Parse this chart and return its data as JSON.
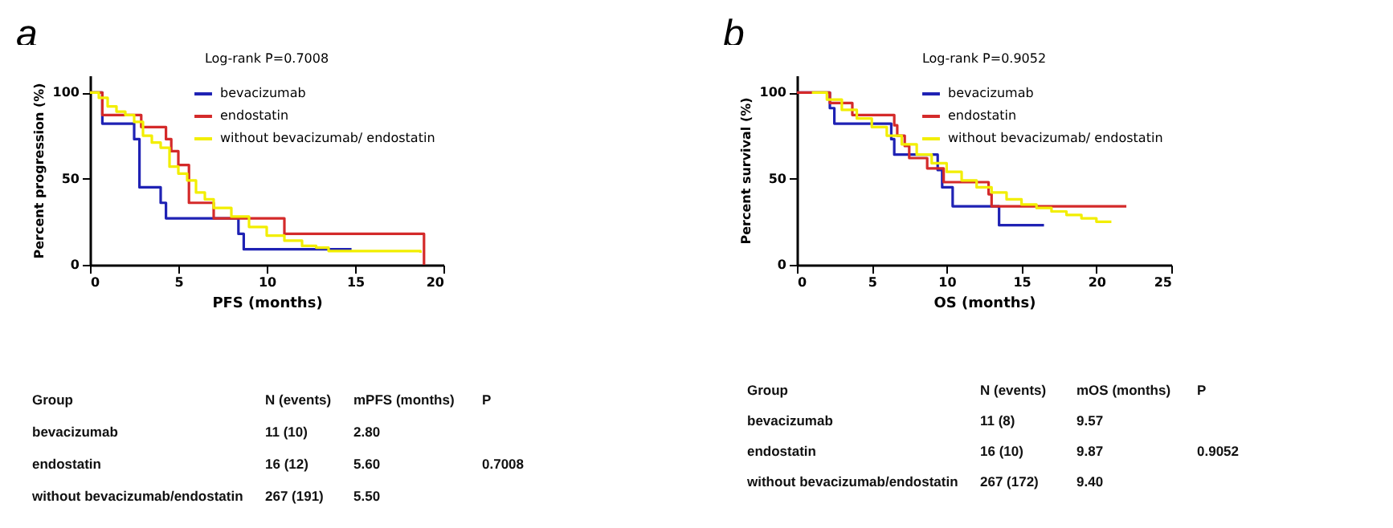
{
  "chart_data": [
    {
      "type": "step",
      "title": "a",
      "subtitle": "Log-rank P=0.7008",
      "xlabel": "PFS (months)",
      "ylabel": "Percent progression (%)",
      "xlim": [
        0,
        20
      ],
      "xticks": [
        0,
        5,
        10,
        15,
        20
      ],
      "ylim": [
        0,
        110
      ],
      "yticks": [
        0,
        50,
        100
      ],
      "legend": "top right",
      "grid": false,
      "series": [
        {
          "name": "bevacizumab",
          "color": "#1f22b4",
          "x": [
            0,
            0.7,
            2.5,
            2.8,
            4.0,
            4.3,
            8.4,
            8.7,
            14.8
          ],
          "values": [
            100,
            82,
            73,
            45,
            36,
            27,
            18,
            9,
            9
          ]
        },
        {
          "name": "endostatin",
          "color": "#d42a2a",
          "x": [
            0,
            0.7,
            2.9,
            4.3,
            4.6,
            5.0,
            5.6,
            7.0,
            11.0,
            18.9,
            18.9
          ],
          "values": [
            100,
            87,
            80,
            73,
            66,
            58,
            36,
            27,
            18,
            18,
            0
          ]
        },
        {
          "name": "without bevacizumab/ endostatin",
          "color": "#f2ee00",
          "x": [
            0,
            0.5,
            1,
            1.5,
            2,
            2.5,
            3,
            3.5,
            4,
            4.5,
            5,
            5.5,
            6,
            6.5,
            7,
            8,
            9,
            10,
            11,
            12,
            12.8,
            13.5,
            15,
            18.7
          ],
          "values": [
            100,
            97,
            92,
            89,
            87,
            83,
            75,
            71,
            68,
            57,
            53,
            49,
            42,
            38,
            33,
            28,
            22,
            17,
            14,
            11,
            10,
            8,
            8,
            7
          ]
        }
      ],
      "annotations": [
        "Group",
        "N (events)",
        "mPFS (months)",
        "P",
        "bevacizumab",
        "11 (10)",
        "2.80",
        "endostatin",
        "16 (12)",
        "5.60",
        "without bevacizumab/endostatin",
        "267 (191)",
        "5.50",
        "0.7008"
      ]
    },
    {
      "type": "step",
      "title": "b",
      "subtitle": "Log-rank P=0.9052",
      "xlabel": "OS (months)",
      "ylabel": "Percent survival (%)",
      "xlim": [
        0,
        25
      ],
      "xticks": [
        0,
        5,
        10,
        15,
        20,
        25
      ],
      "ylim": [
        0,
        110
      ],
      "yticks": [
        0,
        50,
        100
      ],
      "legend": "top right",
      "grid": false,
      "series": [
        {
          "name": "bevacizumab",
          "color": "#1f22b4",
          "x": [
            0,
            2.2,
            2.5,
            6.3,
            6.5,
            9.4,
            9.7,
            10.4,
            13.5,
            16.5
          ],
          "values": [
            100,
            91,
            82,
            73,
            64,
            55,
            45,
            34,
            23,
            23
          ]
        },
        {
          "name": "endostatin",
          "color": "#d42a2a",
          "x": [
            0,
            2.2,
            3.7,
            6.5,
            6.7,
            7.2,
            7.5,
            8.7,
            9.8,
            12.8,
            13.0,
            22
          ],
          "values": [
            100,
            94,
            87,
            81,
            75,
            69,
            62,
            56,
            48,
            41,
            34,
            34
          ]
        },
        {
          "name": "without bevacizumab/ endostatin",
          "color": "#f2ee00",
          "x": [
            1,
            2,
            3,
            4,
            5,
            6,
            7,
            8,
            9,
            10,
            11,
            12,
            13,
            14,
            15,
            16,
            17,
            18,
            19,
            20,
            21
          ],
          "values": [
            100,
            96,
            90,
            85,
            80,
            75,
            70,
            64,
            59,
            54,
            49,
            45,
            42,
            38,
            35,
            33,
            31,
            29,
            27,
            25,
            25
          ]
        }
      ],
      "annotations": [
        "Group",
        "N (events)",
        "mOS (months)",
        "P",
        "bevacizumab",
        "11 (8)",
        "9.57",
        "endostatin",
        "16 (10)",
        "9.87",
        "without bevacizumab/endostatin",
        "267 (172)",
        "9.40",
        "0.9052"
      ]
    }
  ]
}
